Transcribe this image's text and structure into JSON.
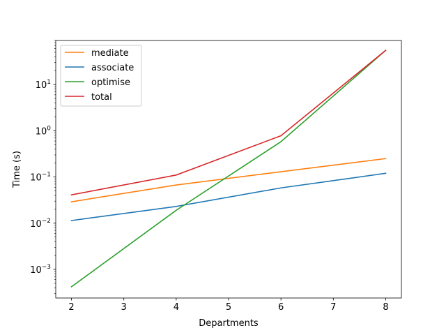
{
  "chart_data": {
    "type": "line",
    "title": "",
    "xlabel": "Departments",
    "ylabel": "Time (s)",
    "xscale": "linear",
    "yscale": "log",
    "xlim": [
      1.7,
      8.3
    ],
    "ylim": [
      0.00024,
      90
    ],
    "xticks": [
      2,
      3,
      4,
      5,
      6,
      7,
      8
    ],
    "yticks": [
      {
        "value": 0.001,
        "base": "10",
        "exp": "−3"
      },
      {
        "value": 0.01,
        "base": "10",
        "exp": "−2"
      },
      {
        "value": 0.1,
        "base": "10",
        "exp": "−1"
      },
      {
        "value": 1,
        "base": "10",
        "exp": "0"
      },
      {
        "value": 10,
        "base": "10",
        "exp": "1"
      }
    ],
    "grid": false,
    "legend_position": "top-left",
    "series": [
      {
        "name": "mediate",
        "color": "#ff7f0e",
        "x": [
          2,
          4,
          6,
          8
        ],
        "y": [
          0.029,
          0.067,
          0.13,
          0.25
        ]
      },
      {
        "name": "associate",
        "color": "#1f77b4",
        "x": [
          2,
          4,
          6,
          8
        ],
        "y": [
          0.0114,
          0.023,
          0.058,
          0.12
        ]
      },
      {
        "name": "optimise",
        "color": "#2ca02c",
        "x": [
          2,
          4,
          6,
          8
        ],
        "y": [
          0.00042,
          0.019,
          0.58,
          55
        ]
      },
      {
        "name": "total",
        "color": "#d62728",
        "x": [
          2,
          4,
          6,
          8
        ],
        "y": [
          0.041,
          0.11,
          0.78,
          55
        ]
      }
    ]
  }
}
